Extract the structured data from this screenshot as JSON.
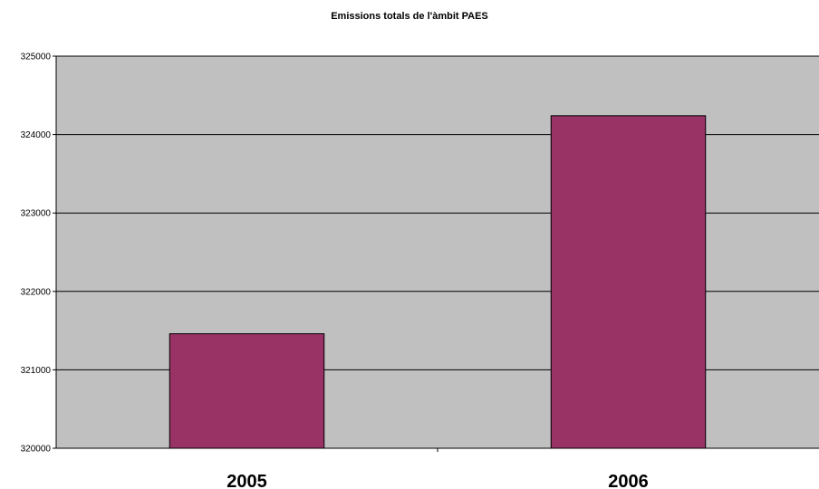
{
  "chart_data": {
    "type": "bar",
    "title": "Emissions totals de l'àmbit PAES",
    "categories": [
      "2005",
      "2006"
    ],
    "values": [
      321460,
      324240
    ],
    "ylim": [
      320000,
      325000
    ],
    "yticks": [
      "320000",
      "321000",
      "322000",
      "323000",
      "324000",
      "325000"
    ],
    "xlabel": "",
    "ylabel": "",
    "grid": true,
    "legend": "none",
    "colors": {
      "plot_background": "#c0c0c0",
      "bar_fill": "#993366",
      "bar_stroke": "#000000",
      "gridline": "#000000"
    }
  }
}
